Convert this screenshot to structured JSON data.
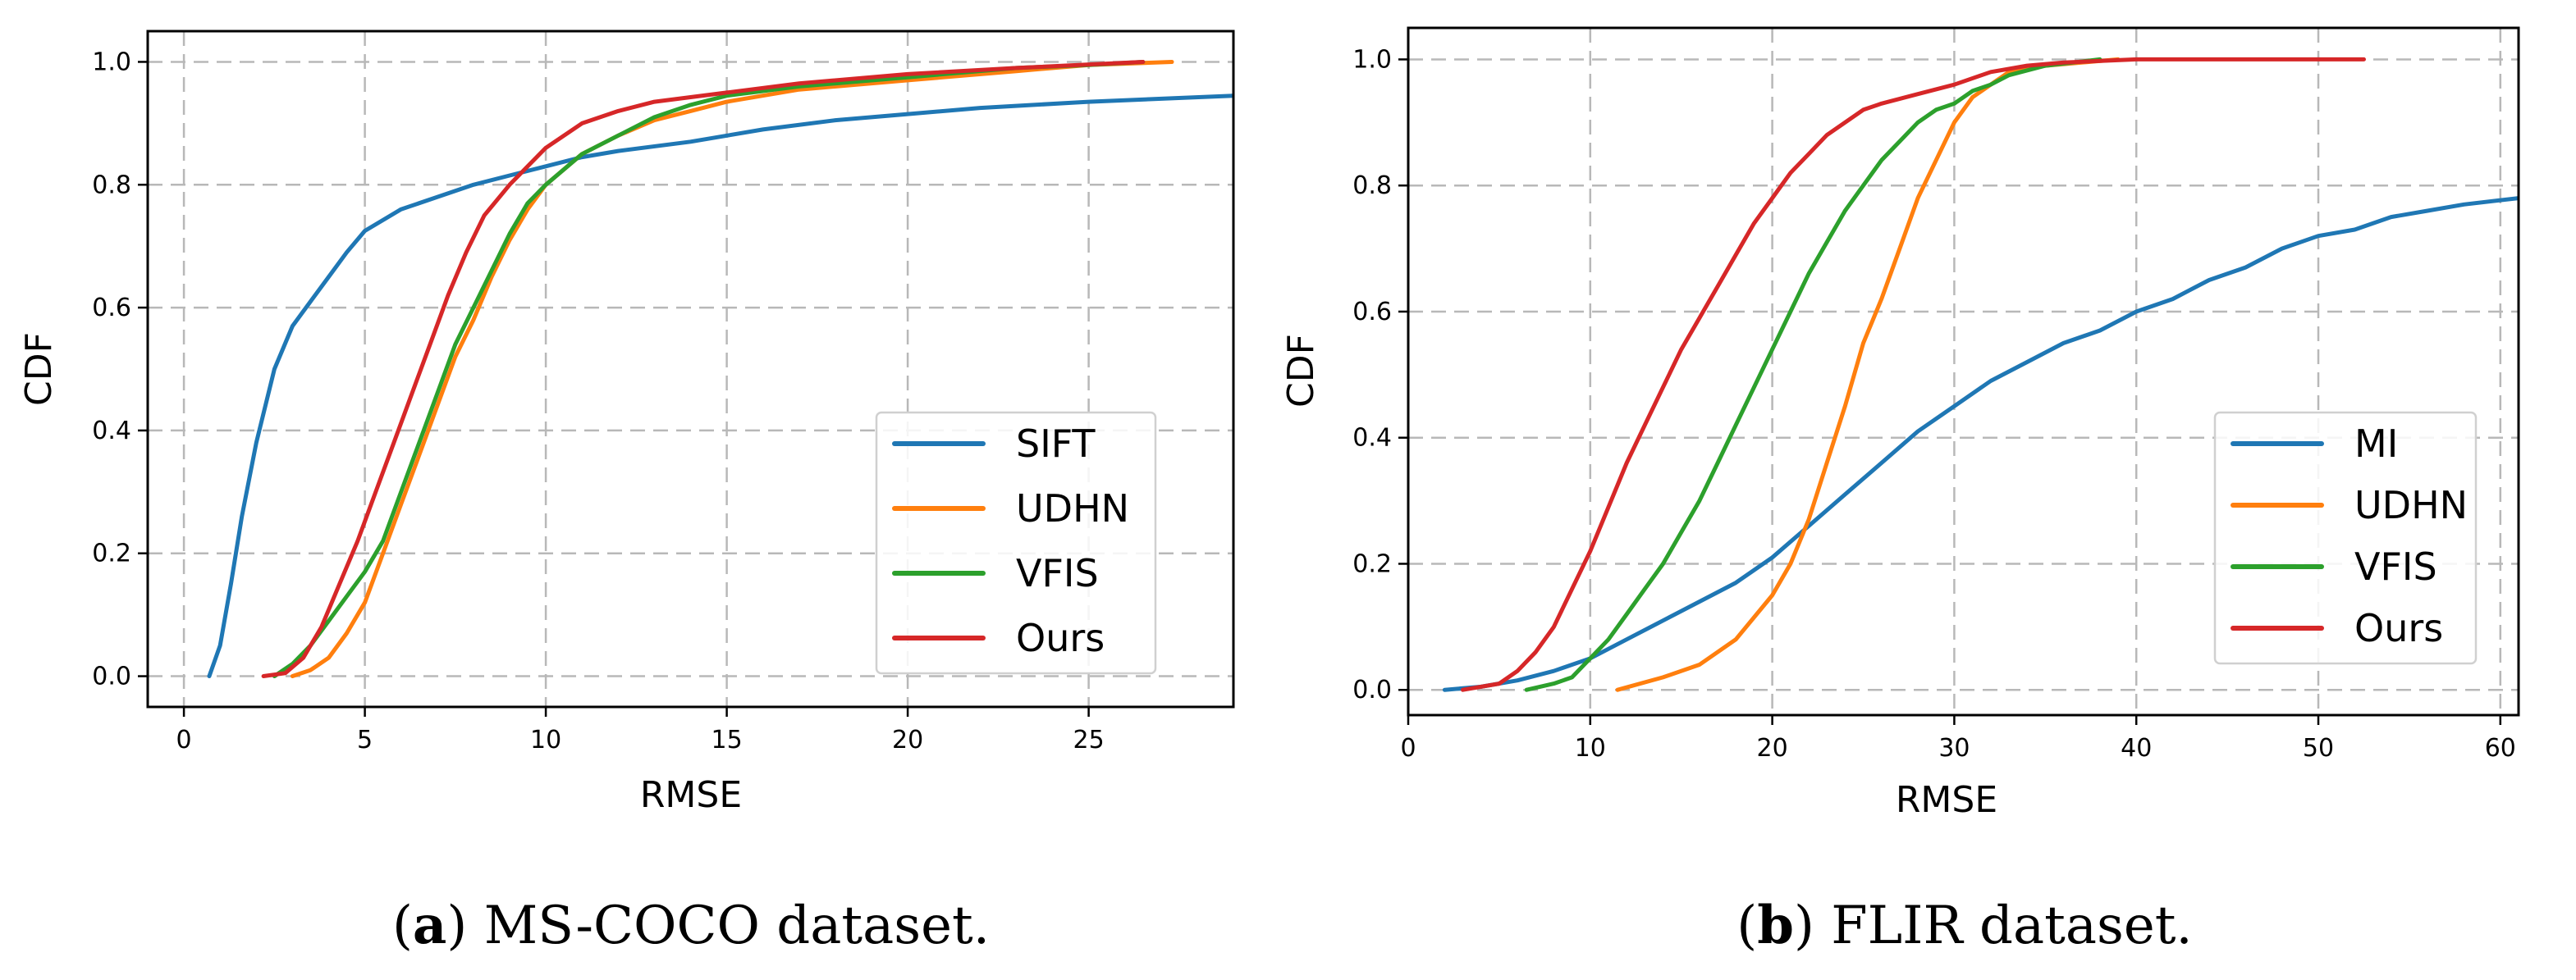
{
  "colors": {
    "blue": "#1f77b4",
    "orange": "#ff7f0e",
    "green": "#2ca02c",
    "red": "#d62728"
  },
  "chart_data": [
    {
      "type": "line",
      "caption_letter": "a",
      "caption_text": "MS-COCO dataset.",
      "xlabel": "RMSE",
      "ylabel": "CDF",
      "xlim": [
        -1,
        29
      ],
      "ylim": [
        -0.05,
        1.05
      ],
      "xticks": [
        0,
        5,
        10,
        15,
        20,
        25
      ],
      "xtick_labels": [
        "0",
        "5",
        "10",
        "15",
        "20",
        "25"
      ],
      "yticks": [
        0.0,
        0.2,
        0.4,
        0.6,
        0.8,
        1.0
      ],
      "ytick_labels": [
        "0.0",
        "0.2",
        "0.4",
        "0.6",
        "0.8",
        "1.0"
      ],
      "legend_position": "lower-right",
      "grid": true,
      "series": [
        {
          "name": "SIFT",
          "color": "#1f77b4",
          "points": [
            [
              0.7,
              0
            ],
            [
              1.0,
              0.05
            ],
            [
              1.3,
              0.15
            ],
            [
              1.6,
              0.26
            ],
            [
              2.0,
              0.38
            ],
            [
              2.5,
              0.5
            ],
            [
              3.0,
              0.57
            ],
            [
              3.5,
              0.61
            ],
            [
              4.0,
              0.65
            ],
            [
              4.5,
              0.69
            ],
            [
              5.0,
              0.725
            ],
            [
              6.0,
              0.76
            ],
            [
              7.0,
              0.78
            ],
            [
              8.0,
              0.8
            ],
            [
              9.0,
              0.815
            ],
            [
              10.0,
              0.83
            ],
            [
              11.0,
              0.845
            ],
            [
              12.0,
              0.855
            ],
            [
              14.0,
              0.87
            ],
            [
              16.0,
              0.89
            ],
            [
              18.0,
              0.905
            ],
            [
              20.0,
              0.915
            ],
            [
              22.0,
              0.925
            ],
            [
              25.0,
              0.935
            ],
            [
              29.0,
              0.945
            ]
          ]
        },
        {
          "name": "UDHN",
          "color": "#ff7f0e",
          "points": [
            [
              3.0,
              0
            ],
            [
              3.5,
              0.01
            ],
            [
              4.0,
              0.03
            ],
            [
              4.5,
              0.07
            ],
            [
              5.0,
              0.12
            ],
            [
              5.5,
              0.2
            ],
            [
              6.0,
              0.28
            ],
            [
              6.5,
              0.36
            ],
            [
              7.0,
              0.44
            ],
            [
              7.5,
              0.52
            ],
            [
              8.0,
              0.58
            ],
            [
              8.5,
              0.65
            ],
            [
              9.0,
              0.71
            ],
            [
              9.5,
              0.76
            ],
            [
              10.0,
              0.8
            ],
            [
              11.0,
              0.85
            ],
            [
              12.0,
              0.88
            ],
            [
              13.0,
              0.905
            ],
            [
              14.0,
              0.92
            ],
            [
              15.0,
              0.935
            ],
            [
              17.0,
              0.955
            ],
            [
              20.0,
              0.97
            ],
            [
              23.0,
              0.985
            ],
            [
              25.0,
              0.995
            ],
            [
              27.3,
              1.0
            ]
          ]
        },
        {
          "name": "VFIS",
          "color": "#2ca02c",
          "points": [
            [
              2.5,
              0
            ],
            [
              3.0,
              0.02
            ],
            [
              3.5,
              0.05
            ],
            [
              4.0,
              0.09
            ],
            [
              4.5,
              0.13
            ],
            [
              5.0,
              0.17
            ],
            [
              5.5,
              0.22
            ],
            [
              6.0,
              0.3
            ],
            [
              6.5,
              0.38
            ],
            [
              7.0,
              0.46
            ],
            [
              7.5,
              0.54
            ],
            [
              8.0,
              0.6
            ],
            [
              8.5,
              0.66
            ],
            [
              9.0,
              0.72
            ],
            [
              9.5,
              0.77
            ],
            [
              10.0,
              0.8
            ],
            [
              11.0,
              0.85
            ],
            [
              12.0,
              0.88
            ],
            [
              13.0,
              0.91
            ],
            [
              14.0,
              0.93
            ],
            [
              15.0,
              0.945
            ],
            [
              17.0,
              0.96
            ],
            [
              20.0,
              0.975
            ],
            [
              23.0,
              0.99
            ],
            [
              25.0,
              0.995
            ],
            [
              26.5,
              1.0
            ]
          ]
        },
        {
          "name": "Ours",
          "color": "#d62728",
          "points": [
            [
              2.2,
              0
            ],
            [
              2.8,
              0.005
            ],
            [
              3.3,
              0.03
            ],
            [
              3.8,
              0.08
            ],
            [
              4.3,
              0.15
            ],
            [
              4.8,
              0.22
            ],
            [
              5.3,
              0.3
            ],
            [
              5.8,
              0.38
            ],
            [
              6.3,
              0.46
            ],
            [
              6.8,
              0.54
            ],
            [
              7.3,
              0.62
            ],
            [
              7.8,
              0.69
            ],
            [
              8.3,
              0.75
            ],
            [
              9.0,
              0.8
            ],
            [
              9.5,
              0.83
            ],
            [
              10.0,
              0.86
            ],
            [
              11.0,
              0.9
            ],
            [
              12.0,
              0.92
            ],
            [
              13.0,
              0.935
            ],
            [
              15.0,
              0.95
            ],
            [
              17.0,
              0.965
            ],
            [
              20.0,
              0.98
            ],
            [
              23.0,
              0.99
            ],
            [
              26.5,
              1.0
            ]
          ]
        }
      ]
    },
    {
      "type": "line",
      "caption_letter": "b",
      "caption_text": "FLIR dataset.",
      "xlabel": "RMSE",
      "ylabel": "CDF",
      "xlim": [
        0,
        61
      ],
      "ylim": [
        -0.04,
        1.05
      ],
      "xticks": [
        0,
        10,
        20,
        30,
        40,
        50,
        60
      ],
      "xtick_labels": [
        "0",
        "10",
        "20",
        "30",
        "40",
        "50",
        "60"
      ],
      "yticks": [
        0.0,
        0.2,
        0.4,
        0.6,
        0.8,
        1.0
      ],
      "ytick_labels": [
        "0.0",
        "0.2",
        "0.4",
        "0.6",
        "0.8",
        "1.0"
      ],
      "legend_position": "lower-right",
      "grid": true,
      "series": [
        {
          "name": "MI",
          "color": "#1f77b4",
          "points": [
            [
              2,
              0
            ],
            [
              4,
              0.005
            ],
            [
              6,
              0.015
            ],
            [
              8,
              0.03
            ],
            [
              10,
              0.05
            ],
            [
              12,
              0.08
            ],
            [
              14,
              0.11
            ],
            [
              16,
              0.14
            ],
            [
              18,
              0.17
            ],
            [
              20,
              0.21
            ],
            [
              22,
              0.26
            ],
            [
              24,
              0.31
            ],
            [
              26,
              0.36
            ],
            [
              28,
              0.41
            ],
            [
              30,
              0.45
            ],
            [
              32,
              0.49
            ],
            [
              34,
              0.52
            ],
            [
              36,
              0.55
            ],
            [
              38,
              0.57
            ],
            [
              40,
              0.6
            ],
            [
              42,
              0.62
            ],
            [
              44,
              0.65
            ],
            [
              46,
              0.67
            ],
            [
              48,
              0.7
            ],
            [
              50,
              0.72
            ],
            [
              52,
              0.73
            ],
            [
              54,
              0.75
            ],
            [
              56,
              0.76
            ],
            [
              58,
              0.77
            ],
            [
              61,
              0.78
            ]
          ]
        },
        {
          "name": "UDHN",
          "color": "#ff7f0e",
          "points": [
            [
              11.5,
              0
            ],
            [
              14,
              0.02
            ],
            [
              16,
              0.04
            ],
            [
              18,
              0.08
            ],
            [
              20,
              0.15
            ],
            [
              21,
              0.2
            ],
            [
              22,
              0.27
            ],
            [
              23,
              0.36
            ],
            [
              24,
              0.45
            ],
            [
              25,
              0.55
            ],
            [
              26,
              0.62
            ],
            [
              27,
              0.7
            ],
            [
              28,
              0.78
            ],
            [
              29,
              0.84
            ],
            [
              30,
              0.9
            ],
            [
              31,
              0.94
            ],
            [
              32,
              0.96
            ],
            [
              33,
              0.98
            ],
            [
              35,
              0.99
            ],
            [
              39,
              1.0
            ]
          ]
        },
        {
          "name": "VFIS",
          "color": "#2ca02c",
          "points": [
            [
              6.5,
              0
            ],
            [
              8,
              0.01
            ],
            [
              9,
              0.02
            ],
            [
              10,
              0.05
            ],
            [
              11,
              0.08
            ],
            [
              12,
              0.12
            ],
            [
              13,
              0.16
            ],
            [
              14,
              0.2
            ],
            [
              15,
              0.25
            ],
            [
              16,
              0.3
            ],
            [
              17,
              0.36
            ],
            [
              18,
              0.42
            ],
            [
              19,
              0.48
            ],
            [
              20,
              0.54
            ],
            [
              21,
              0.6
            ],
            [
              22,
              0.66
            ],
            [
              23,
              0.71
            ],
            [
              24,
              0.76
            ],
            [
              25,
              0.8
            ],
            [
              26,
              0.84
            ],
            [
              27,
              0.87
            ],
            [
              28,
              0.9
            ],
            [
              29,
              0.92
            ],
            [
              30,
              0.93
            ],
            [
              31,
              0.95
            ],
            [
              32,
              0.96
            ],
            [
              33,
              0.975
            ],
            [
              35,
              0.99
            ],
            [
              38,
              1.0
            ]
          ]
        },
        {
          "name": "Ours",
          "color": "#d62728",
          "points": [
            [
              3,
              0
            ],
            [
              5,
              0.01
            ],
            [
              6,
              0.03
            ],
            [
              7,
              0.06
            ],
            [
              8,
              0.1
            ],
            [
              9,
              0.16
            ],
            [
              10,
              0.22
            ],
            [
              11,
              0.29
            ],
            [
              12,
              0.36
            ],
            [
              13,
              0.42
            ],
            [
              14,
              0.48
            ],
            [
              15,
              0.54
            ],
            [
              16,
              0.59
            ],
            [
              17,
              0.64
            ],
            [
              18,
              0.69
            ],
            [
              19,
              0.74
            ],
            [
              20,
              0.78
            ],
            [
              21,
              0.82
            ],
            [
              22,
              0.85
            ],
            [
              23,
              0.88
            ],
            [
              24,
              0.9
            ],
            [
              25,
              0.92
            ],
            [
              26,
              0.93
            ],
            [
              28,
              0.945
            ],
            [
              30,
              0.96
            ],
            [
              32,
              0.98
            ],
            [
              34,
              0.99
            ],
            [
              36,
              0.995
            ],
            [
              40,
              1.0
            ],
            [
              52.5,
              1.0
            ]
          ]
        }
      ]
    }
  ]
}
